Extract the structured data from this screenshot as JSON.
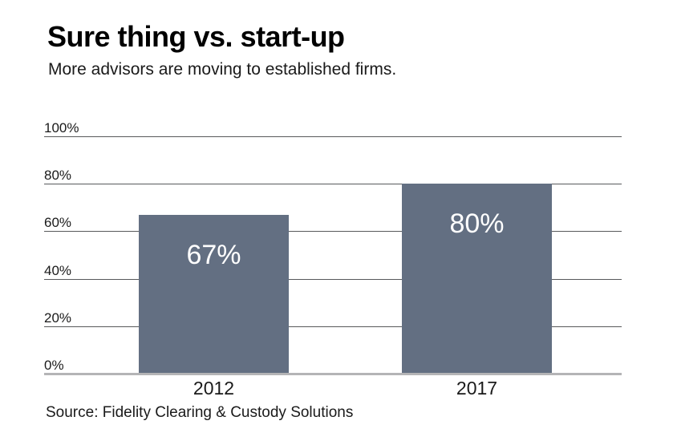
{
  "header": {
    "title": "Sure thing vs. start-up",
    "subtitle": "More advisors are moving to established firms."
  },
  "footer": {
    "source": "Source: Fidelity Clearing & Custody Solutions"
  },
  "chart_data": {
    "type": "bar",
    "title": "Sure thing vs. start-up",
    "subtitle": "More advisors are moving to established firms.",
    "categories": [
      "2012",
      "2017"
    ],
    "values": [
      67,
      80
    ],
    "bar_labels": [
      "67%",
      "80%"
    ],
    "y_ticks": [
      0,
      20,
      40,
      60,
      80,
      100
    ],
    "y_tick_labels": [
      "0%",
      "20%",
      "40%",
      "60%",
      "80%",
      "100%"
    ],
    "ylim": [
      0,
      100
    ],
    "xlabel": "",
    "ylabel": "",
    "grid": "horizontal",
    "legend_position": "none",
    "source": "Source: Fidelity Clearing & Custody Solutions",
    "colors": {
      "bar": "#636F82",
      "bar_label_text": "#FFFFFF",
      "gridline": "#58595B",
      "baseline": "#B4B4B6",
      "text": "#1A1A1A",
      "background": "#FFFFFF"
    }
  }
}
